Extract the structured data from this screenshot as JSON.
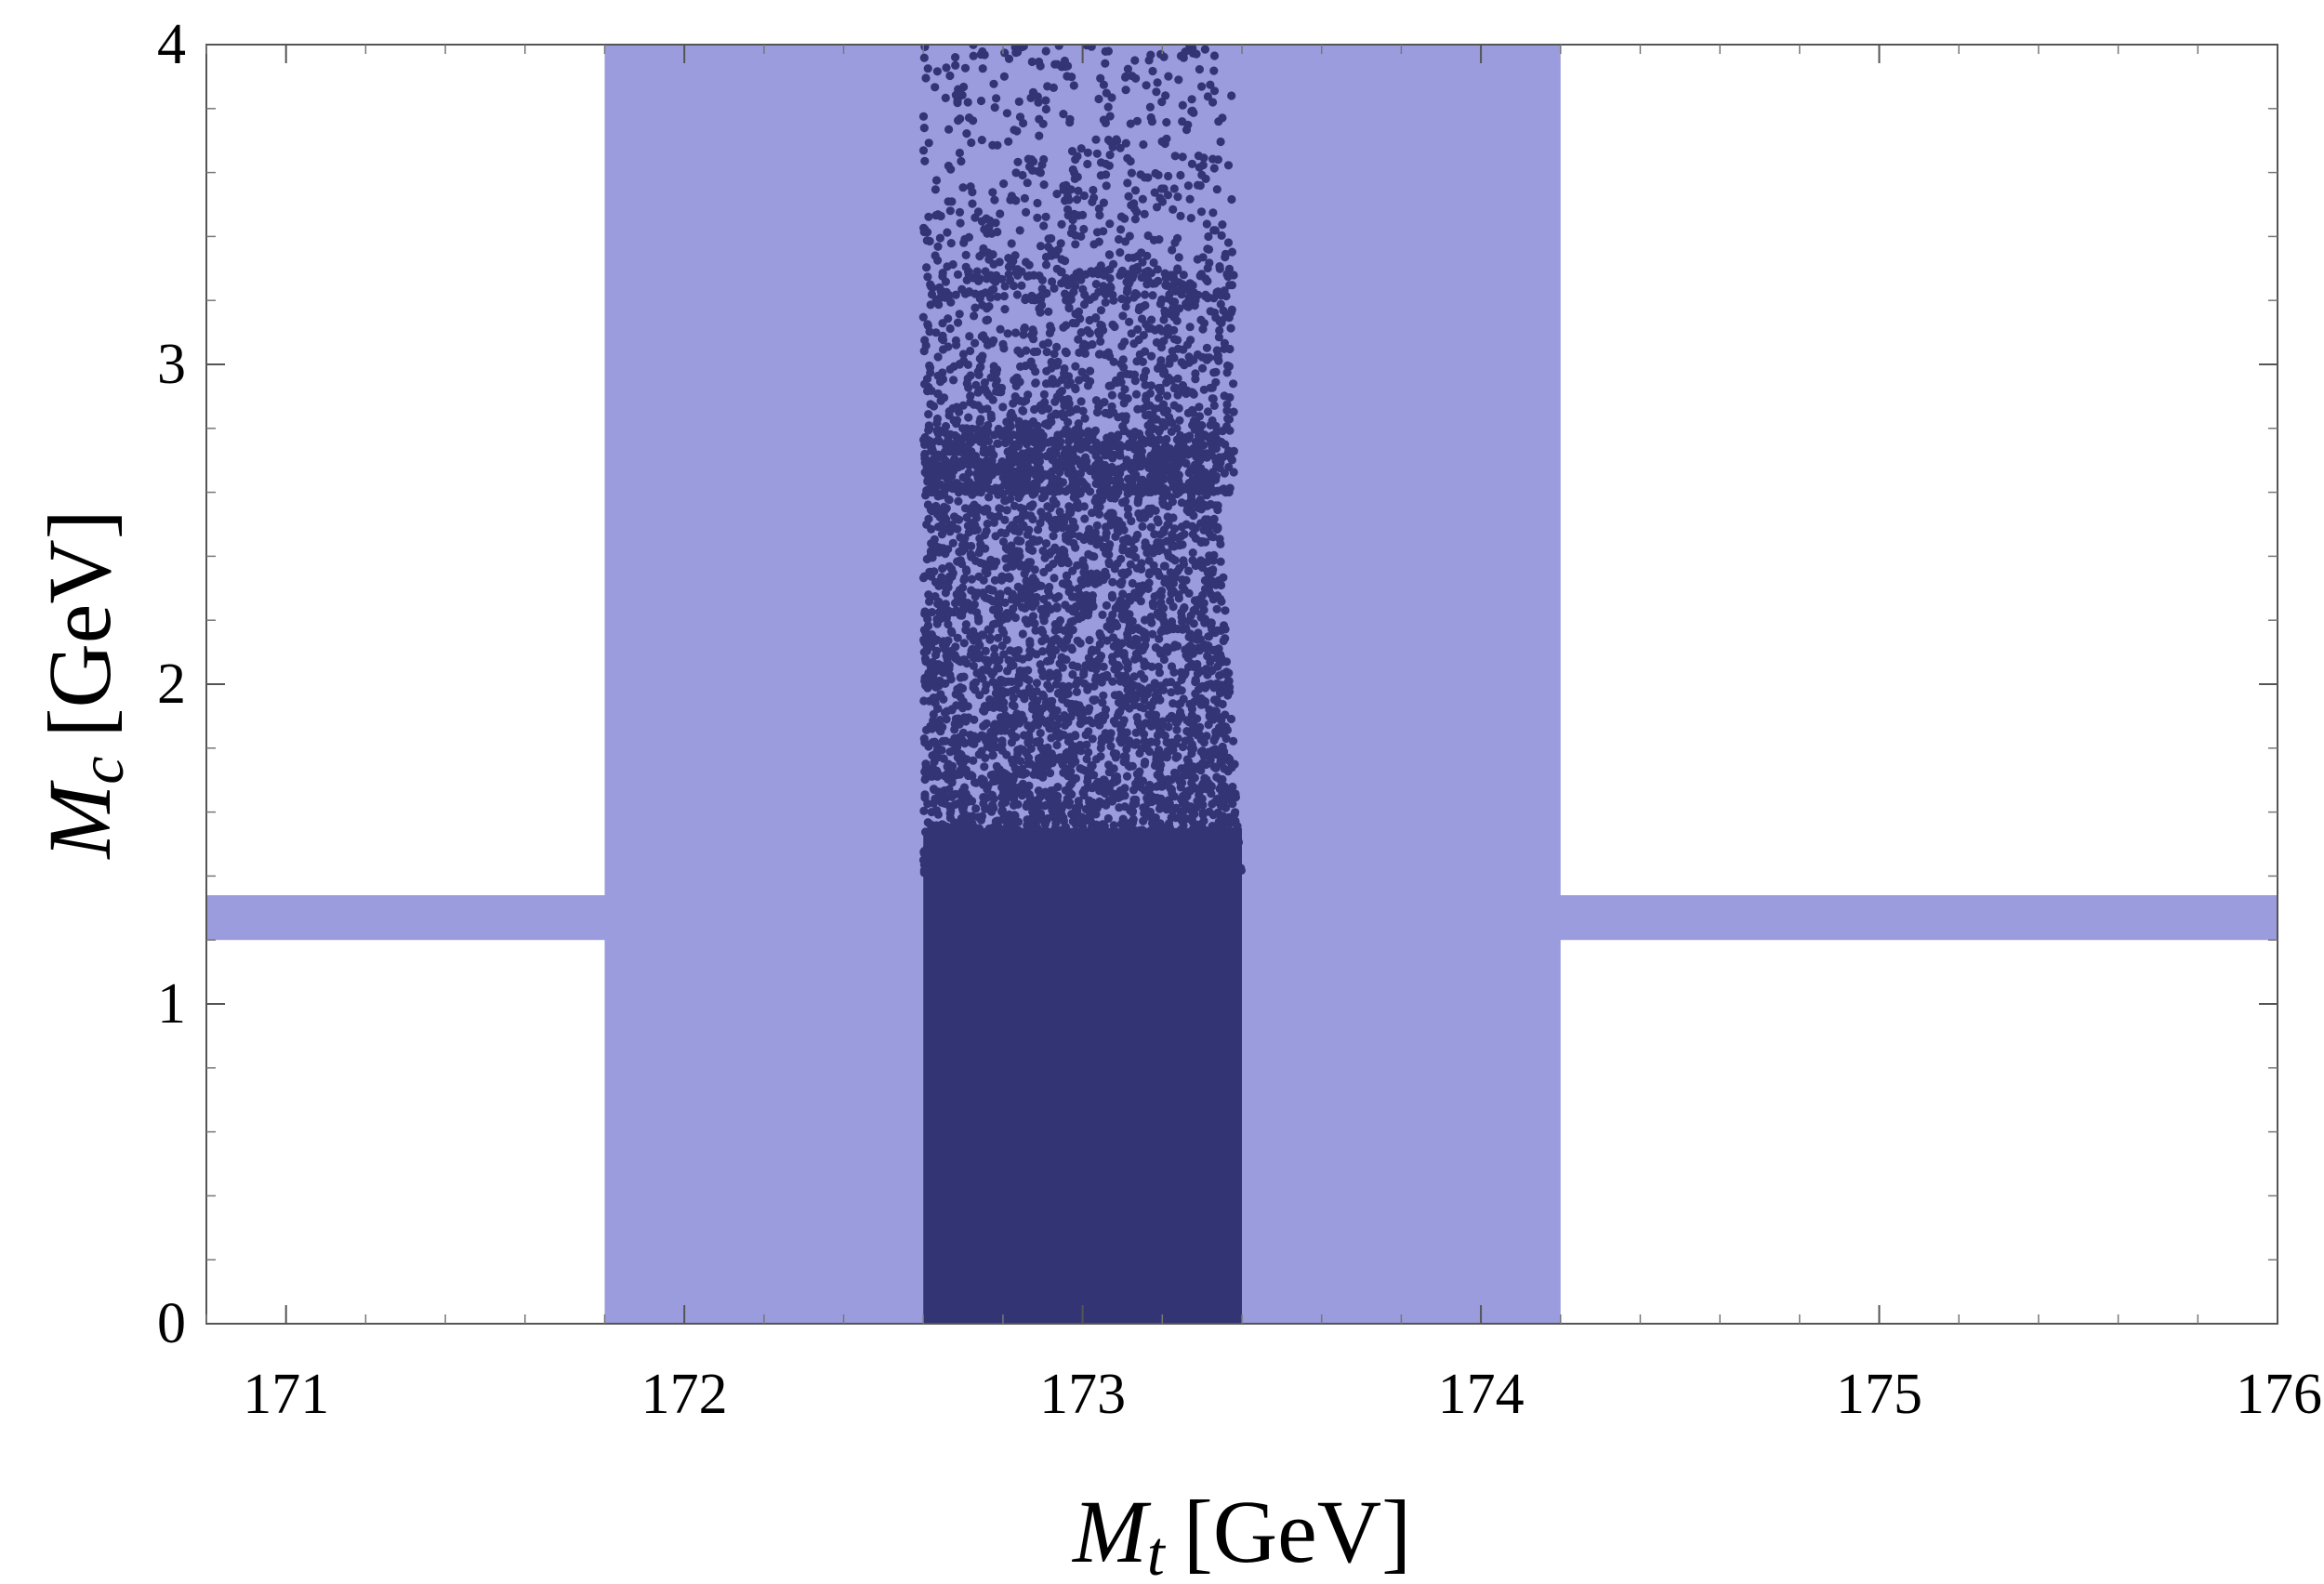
{
  "chart_data": {
    "type": "scatter",
    "title": "",
    "xlabel": {
      "symbol": "M",
      "subscript": "t",
      "unit": "[GeV]"
    },
    "ylabel": {
      "symbol": "M",
      "subscript": "c",
      "unit": "[GeV]"
    },
    "xlim": [
      170.8,
      176.0
    ],
    "ylim": [
      0,
      4
    ],
    "x_ticks": [
      171,
      172,
      173,
      174,
      175,
      176
    ],
    "y_ticks": [
      0,
      1,
      2,
      3,
      4
    ],
    "x_tick_labels": [
      "171",
      "172",
      "173",
      "174",
      "175",
      "176"
    ],
    "y_tick_labels": [
      "0",
      "1",
      "2",
      "3",
      "4"
    ],
    "grid": false,
    "bands": [
      {
        "name": "",
        "orientation": "vertical",
        "x_range": [
          171.8,
          174.2
        ],
        "color": "#9a9cdd"
      },
      {
        "name": "",
        "orientation": "horizontal",
        "y_range": [
          1.2,
          1.34
        ],
        "color": "#9a9cdd"
      }
    ],
    "scatter": {
      "name": "",
      "color": "#333474",
      "x_range": [
        172.6,
        173.4
      ],
      "y_range": [
        0,
        4
      ],
      "description_density": "dense near Mc=0 up to ~2.7, sparse above to ~4"
    }
  }
}
